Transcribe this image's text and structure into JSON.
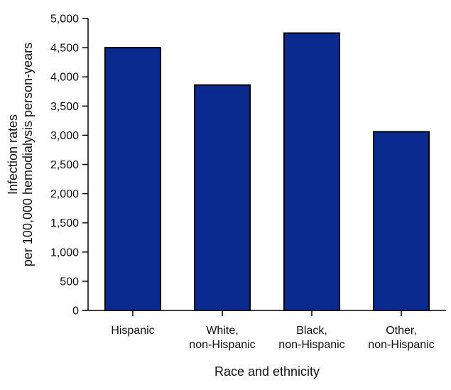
{
  "chart_data": {
    "type": "bar",
    "title": "",
    "categories": [
      [
        "Hispanic"
      ],
      [
        "White,",
        "non-Hispanic"
      ],
      [
        "Black,",
        "non-Hispanic"
      ],
      [
        "Other,",
        "non-Hispanic"
      ]
    ],
    "values": [
      4500,
      3860,
      4750,
      3060
    ],
    "xlabel": "Race and ethnicity",
    "ylabel": [
      "Infection rates",
      "per 100,000 hemodialysis person-years"
    ],
    "ylim": [
      0,
      5000
    ],
    "yticks": [
      0,
      500,
      1000,
      1500,
      2000,
      2500,
      3000,
      3500,
      4000,
      4500,
      5000
    ],
    "ytick_labels": [
      "0",
      "500",
      "1,000",
      "1,500",
      "2,000",
      "2,500",
      "3,000",
      "3,500",
      "4,000",
      "4,500",
      "5,000"
    ],
    "grid": false,
    "bar_color": "#0a2a8f",
    "bar_edge_color": "#000000"
  }
}
